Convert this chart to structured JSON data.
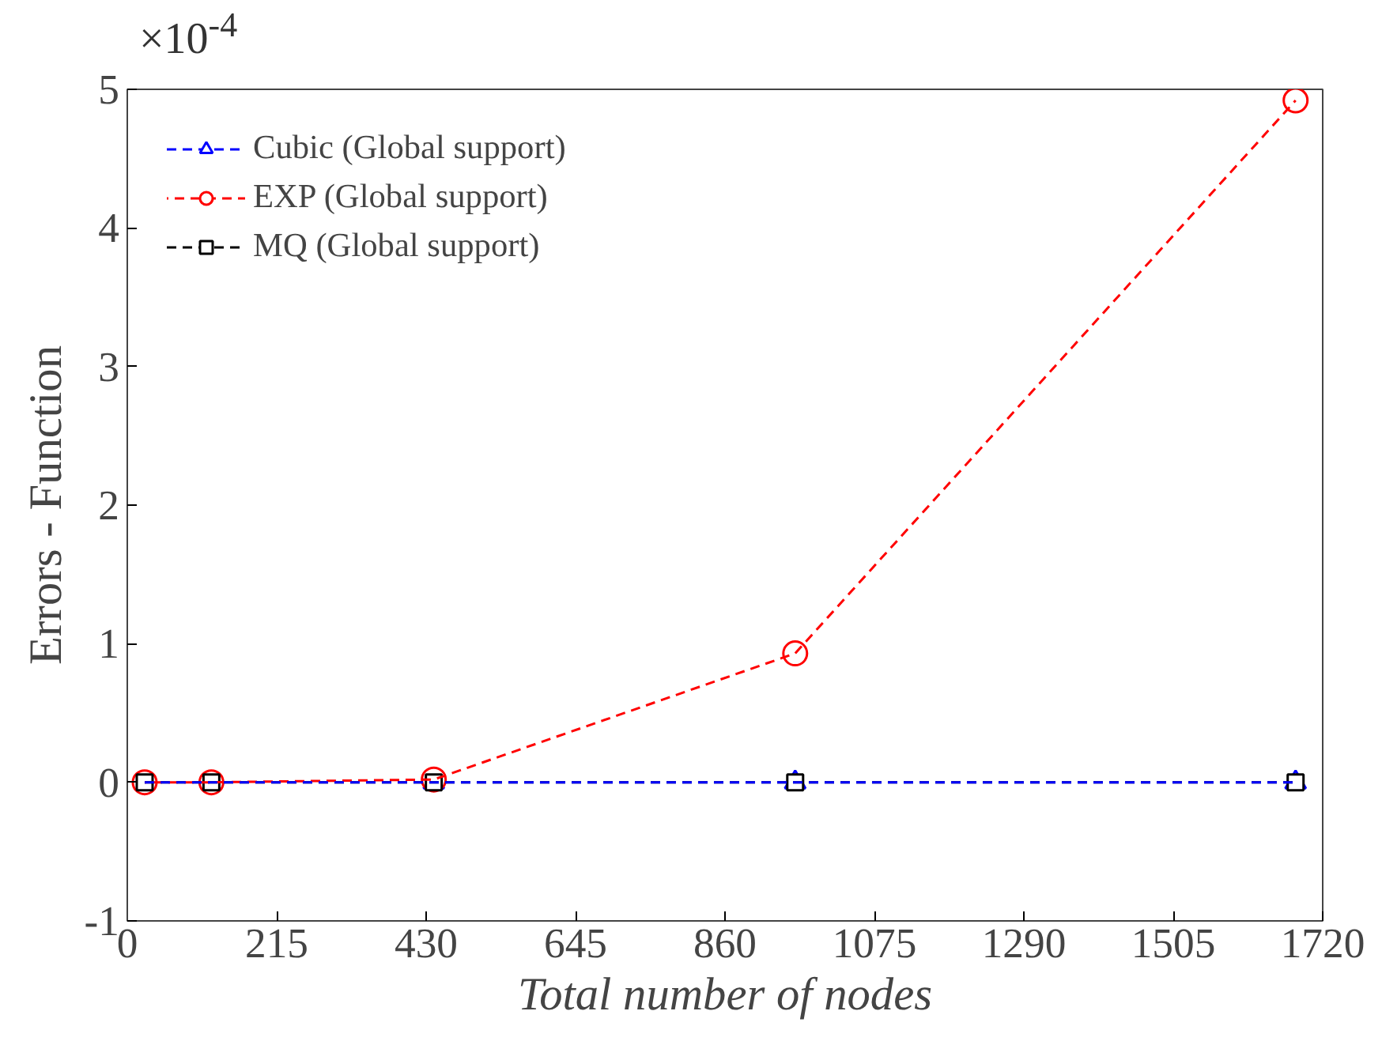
{
  "chart_data": {
    "type": "line",
    "xlabel": "Total number of nodes",
    "ylabel": "Errors - Function",
    "annotations": [
      "×10$^{-4}$"
    ],
    "x": [
      25,
      121,
      441,
      961,
      1681
    ],
    "series": [
      {
        "name": "Cubic (Global support)",
        "color": "#0000ff",
        "marker": "triangle",
        "values": [
          0,
          0,
          0,
          0,
          0
        ]
      },
      {
        "name": "EXP (Global support)",
        "color": "#ff0000",
        "marker": "circle",
        "values": [
          0,
          0,
          0.02,
          0.93,
          4.92
        ]
      },
      {
        "name": "MQ (Global support)",
        "color": "#000000",
        "marker": "square",
        "values": [
          0,
          0,
          0,
          0,
          0
        ]
      }
    ],
    "xlim": [
      0,
      1720
    ],
    "xticks": [
      0,
      215,
      430,
      645,
      860,
      1075,
      1290,
      1505,
      1720
    ],
    "ylim": [
      -1,
      5
    ],
    "yticks": [
      -1,
      0,
      1,
      2,
      3,
      4,
      5
    ],
    "grid": false,
    "legend": "top left",
    "line_style": "dashed"
  }
}
